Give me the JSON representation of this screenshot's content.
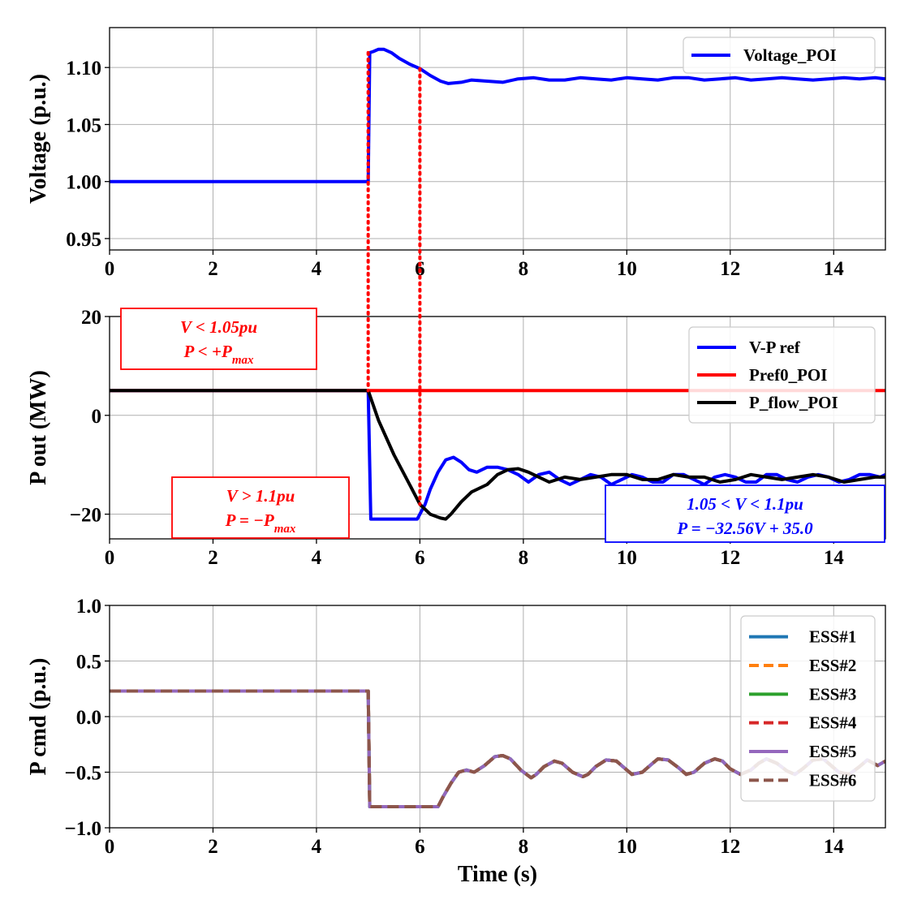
{
  "chart_data": [
    {
      "type": "line",
      "ylabel": "Voltage (p.u.)",
      "xlabel": "",
      "xlim": [
        0,
        15
      ],
      "ylim": [
        0.94,
        1.135
      ],
      "xticks": [
        "0",
        "2",
        "4",
        "6",
        "8",
        "10",
        "12",
        "14"
      ],
      "yticks": [
        "0.95",
        "1.00",
        "1.05",
        "1.10"
      ],
      "grid": true,
      "legend_position": "top-right",
      "series": [
        {
          "name": "Voltage_POI",
          "color": "#0000ff",
          "style": "solid",
          "x": [
            0,
            4.98,
            5.0,
            5.03,
            5.1,
            5.2,
            5.3,
            5.45,
            5.6,
            5.8,
            6.0,
            6.2,
            6.4,
            6.55,
            6.8,
            7.0,
            7.3,
            7.6,
            7.9,
            8.2,
            8.5,
            8.8,
            9.1,
            9.4,
            9.7,
            10.0,
            10.3,
            10.6,
            10.9,
            11.2,
            11.5,
            11.8,
            12.1,
            12.4,
            12.7,
            13.0,
            13.3,
            13.6,
            13.9,
            14.2,
            14.5,
            14.8,
            15.0
          ],
          "y": [
            1.0,
            1.0,
            1.0,
            1.113,
            1.114,
            1.116,
            1.116,
            1.113,
            1.108,
            1.103,
            1.099,
            1.093,
            1.088,
            1.086,
            1.087,
            1.089,
            1.088,
            1.087,
            1.09,
            1.091,
            1.089,
            1.089,
            1.091,
            1.09,
            1.089,
            1.091,
            1.09,
            1.089,
            1.091,
            1.091,
            1.089,
            1.09,
            1.091,
            1.089,
            1.09,
            1.091,
            1.09,
            1.089,
            1.09,
            1.091,
            1.09,
            1.091,
            1.09
          ]
        }
      ],
      "annotations": []
    },
    {
      "type": "line",
      "ylabel": "P out (MW)",
      "xlabel": "",
      "xlim": [
        0,
        15
      ],
      "ylim": [
        -25,
        20
      ],
      "xticks": [
        "0",
        "2",
        "4",
        "6",
        "8",
        "10",
        "12",
        "14"
      ],
      "yticks": [
        "−20",
        "0",
        "20"
      ],
      "grid": true,
      "legend_position": "top-right",
      "series": [
        {
          "name": "V-P ref",
          "color": "#0000ff",
          "style": "solid",
          "x": [
            0,
            5.0,
            5.05,
            5.95,
            6.1,
            6.2,
            6.35,
            6.5,
            6.65,
            6.8,
            6.95,
            7.1,
            7.3,
            7.5,
            7.7,
            7.9,
            8.1,
            8.3,
            8.5,
            8.7,
            8.9,
            9.1,
            9.3,
            9.5,
            9.7,
            9.9,
            10.1,
            10.3,
            10.5,
            10.7,
            10.9,
            11.1,
            11.3,
            11.5,
            11.7,
            11.9,
            12.1,
            12.3,
            12.5,
            12.7,
            12.9,
            13.1,
            13.3,
            13.5,
            13.7,
            13.9,
            14.1,
            14.3,
            14.5,
            14.7,
            14.9,
            15.0
          ],
          "y": [
            5,
            5,
            -21,
            -21,
            -18,
            -15,
            -11.5,
            -9,
            -8.5,
            -9.5,
            -11,
            -11.5,
            -10.5,
            -10.5,
            -11,
            -12,
            -13.5,
            -12,
            -11.5,
            -13,
            -14,
            -13,
            -12,
            -12.5,
            -14,
            -13,
            -12,
            -12.5,
            -13.5,
            -13.5,
            -12,
            -12,
            -13,
            -14,
            -12.5,
            -12,
            -12.5,
            -13.5,
            -13.5,
            -12,
            -12,
            -13,
            -13.5,
            -12.5,
            -12,
            -12.5,
            -13.5,
            -13,
            -12,
            -12,
            -12.5,
            -12
          ]
        },
        {
          "name": "Pref0_POI",
          "color": "#ff0000",
          "style": "solid",
          "x": [
            0,
            15
          ],
          "y": [
            5,
            5
          ]
        },
        {
          "name": "P_flow_POI",
          "color": "#000000",
          "style": "solid",
          "x": [
            0,
            5.0,
            5.2,
            5.5,
            5.8,
            6.0,
            6.2,
            6.4,
            6.5,
            6.6,
            6.8,
            7.0,
            7.3,
            7.5,
            7.7,
            7.9,
            8.1,
            8.3,
            8.5,
            8.8,
            9.1,
            9.4,
            9.7,
            10.0,
            10.3,
            10.6,
            10.9,
            11.2,
            11.5,
            11.8,
            12.1,
            12.4,
            12.7,
            13.0,
            13.3,
            13.6,
            13.9,
            14.2,
            14.5,
            14.8,
            15.0
          ],
          "y": [
            5,
            5,
            -1,
            -8,
            -14,
            -18,
            -20,
            -20.8,
            -21,
            -20,
            -17.5,
            -15.5,
            -14,
            -12,
            -11,
            -10.8,
            -11.5,
            -12.5,
            -13.5,
            -12.5,
            -13,
            -12.5,
            -12,
            -12,
            -13,
            -13,
            -12,
            -12.5,
            -12.5,
            -13.5,
            -13,
            -12,
            -12.5,
            -13,
            -12.5,
            -12,
            -12.5,
            -13.5,
            -13,
            -12.5,
            -12.5
          ]
        }
      ],
      "annotations": [
        {
          "lines": [
            "V < 1.05pu",
            "P < +P",
            "max"
          ],
          "color": "#ff0000"
        },
        {
          "lines": [
            "V > 1.1pu",
            "P = −P",
            "max"
          ],
          "color": "#ff0000"
        },
        {
          "lines": [
            "1.05 < V < 1.1pu",
            "P = −32.56V + 35.0"
          ],
          "color": "#0000ff"
        }
      ]
    },
    {
      "type": "line",
      "ylabel": "P cmd (p.u.)",
      "xlabel": "Time (s)",
      "xlim": [
        0,
        15
      ],
      "ylim": [
        -1.0,
        1.0
      ],
      "xticks": [
        "0",
        "2",
        "4",
        "6",
        "8",
        "10",
        "12",
        "14"
      ],
      "yticks": [
        "−1.0",
        "−0.5",
        "0.0",
        "0.5",
        "1.0"
      ],
      "grid": true,
      "legend_position": "right",
      "series_x": [
        0,
        5.0,
        5.03,
        6.35,
        6.45,
        6.6,
        6.75,
        6.9,
        7.05,
        7.25,
        7.45,
        7.6,
        7.75,
        7.95,
        8.15,
        8.25,
        8.4,
        8.6,
        8.75,
        8.95,
        9.15,
        9.25,
        9.4,
        9.6,
        9.8,
        9.95,
        10.1,
        10.3,
        10.5,
        10.6,
        10.8,
        11.0,
        11.15,
        11.3,
        11.5,
        11.7,
        11.85,
        12.0,
        12.2,
        12.4,
        12.55,
        12.7,
        12.9,
        13.1,
        13.25,
        13.4,
        13.6,
        13.8,
        13.95,
        14.1,
        14.3,
        14.5,
        14.65,
        14.85,
        15.0
      ],
      "series_y": [
        0.23,
        0.23,
        -0.81,
        -0.81,
        -0.72,
        -0.6,
        -0.5,
        -0.48,
        -0.5,
        -0.44,
        -0.36,
        -0.35,
        -0.38,
        -0.48,
        -0.55,
        -0.52,
        -0.45,
        -0.4,
        -0.42,
        -0.5,
        -0.54,
        -0.52,
        -0.45,
        -0.39,
        -0.4,
        -0.46,
        -0.52,
        -0.5,
        -0.42,
        -0.38,
        -0.39,
        -0.46,
        -0.52,
        -0.5,
        -0.42,
        -0.38,
        -0.4,
        -0.47,
        -0.52,
        -0.48,
        -0.42,
        -0.38,
        -0.42,
        -0.49,
        -0.52,
        -0.47,
        -0.39,
        -0.38,
        -0.44,
        -0.5,
        -0.52,
        -0.45,
        -0.39,
        -0.44,
        -0.4
      ],
      "series": [
        {
          "name": "ESS#1",
          "color": "#1f77b4",
          "style": "solid"
        },
        {
          "name": "ESS#2",
          "color": "#ff7f0e",
          "style": "dashed"
        },
        {
          "name": "ESS#3",
          "color": "#2ca02c",
          "style": "solid"
        },
        {
          "name": "ESS#4",
          "color": "#d62728",
          "style": "dashed"
        },
        {
          "name": "ESS#5",
          "color": "#9467bd",
          "style": "solid"
        },
        {
          "name": "ESS#6",
          "color": "#8c564b",
          "style": "dashed"
        }
      ]
    }
  ],
  "markers": {
    "x": [
      5,
      6
    ],
    "color": "#ff0000"
  }
}
